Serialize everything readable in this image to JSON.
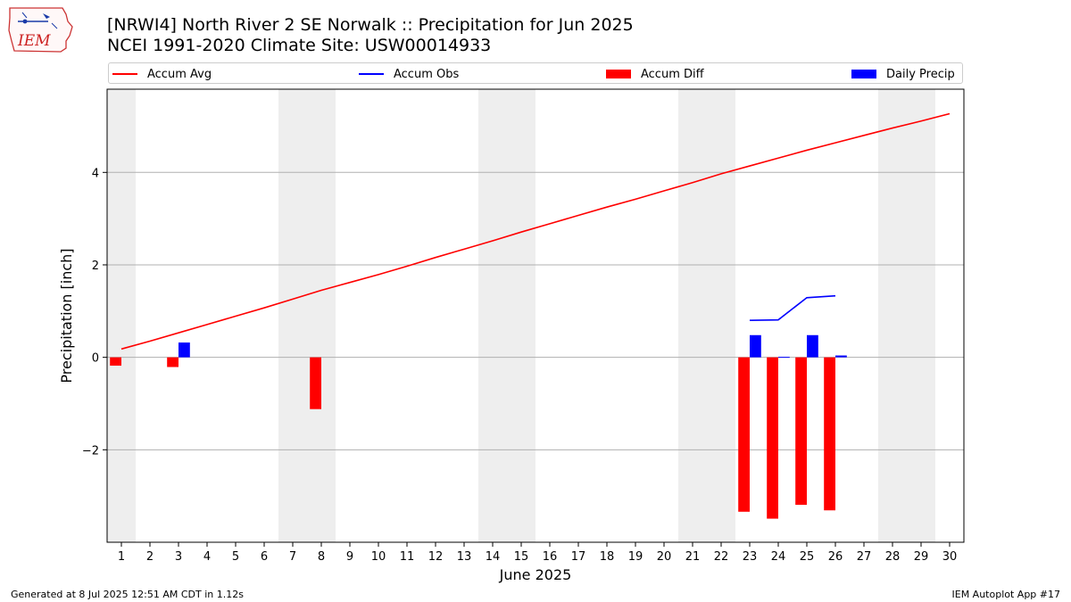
{
  "header": {
    "title_line1": "[NRWI4] North River 2 SE Norwalk :: Precipitation for Jun 2025",
    "title_line2": "NCEI 1991-2020 Climate Site: USW00014933"
  },
  "logo": {
    "text": "IEM"
  },
  "footer": {
    "left": "Generated at 8 Jul 2025 12:51 AM CDT in 1.12s",
    "right": "IEM Autoplot App #17"
  },
  "legend": [
    {
      "label": "Accum Avg",
      "kind": "line",
      "color": "#ff0000"
    },
    {
      "label": "Accum Obs",
      "kind": "line",
      "color": "#0000ff"
    },
    {
      "label": "Accum Diff",
      "kind": "patch",
      "color": "#ff0000"
    },
    {
      "label": "Daily Precip",
      "kind": "patch",
      "color": "#0000ff"
    }
  ],
  "chart_data": {
    "type": "bar",
    "xlabel": "June 2025",
    "ylabel": "Precipitation [inch]",
    "x": [
      1,
      2,
      3,
      4,
      5,
      6,
      7,
      8,
      9,
      10,
      11,
      12,
      13,
      14,
      15,
      16,
      17,
      18,
      19,
      20,
      21,
      22,
      23,
      24,
      25,
      26,
      27,
      28,
      29,
      30
    ],
    "x_tick_labels": [
      "1",
      "2",
      "3",
      "4",
      "5",
      "6",
      "7",
      "8",
      "9",
      "10",
      "11",
      "12",
      "13",
      "14",
      "15",
      "16",
      "17",
      "18",
      "19",
      "20",
      "21",
      "22",
      "23",
      "24",
      "25",
      "26",
      "27",
      "28",
      "29",
      "30"
    ],
    "xlim": [
      0.5,
      30.5
    ],
    "ylim": [
      -4.0,
      5.8
    ],
    "y_ticks": [
      -2,
      0,
      2,
      4
    ],
    "y_tick_labels": [
      "−2",
      "0",
      "2",
      "4"
    ],
    "grid": "horizontal",
    "weekend_shading": [
      [
        0.5,
        1.5
      ],
      [
        6.5,
        8.5
      ],
      [
        13.5,
        15.5
      ],
      [
        20.5,
        22.5
      ],
      [
        27.5,
        29.5
      ]
    ],
    "shade_color": "#eeeeee",
    "series": [
      {
        "name": "Accum Avg",
        "kind": "line",
        "color": "#ff0000",
        "x": [
          1,
          2,
          3,
          4,
          5,
          6,
          7,
          8,
          9,
          10,
          11,
          12,
          13,
          14,
          15,
          16,
          17,
          18,
          19,
          20,
          21,
          22,
          23,
          24,
          25,
          26,
          27,
          28,
          29,
          30
        ],
        "values": [
          0.18,
          0.35,
          0.53,
          0.71,
          0.89,
          1.07,
          1.26,
          1.45,
          1.62,
          1.79,
          1.97,
          2.16,
          2.34,
          2.52,
          2.71,
          2.89,
          3.07,
          3.25,
          3.42,
          3.6,
          3.78,
          3.97,
          4.14,
          4.31,
          4.48,
          4.64,
          4.8,
          4.96,
          5.11,
          5.27
        ]
      },
      {
        "name": "Accum Obs",
        "kind": "line",
        "color": "#0000ff",
        "x": [
          23,
          24,
          25,
          26
        ],
        "values": [
          0.8,
          0.81,
          1.29,
          1.33
        ]
      },
      {
        "name": "Accum Diff",
        "kind": "bar",
        "color": "#ff0000",
        "offset": -0.2,
        "x": [
          1,
          3,
          8,
          23,
          24,
          25,
          26
        ],
        "values": [
          -0.18,
          -0.21,
          -1.12,
          -3.34,
          -3.49,
          -3.19,
          -3.31
        ]
      },
      {
        "name": "Daily Precip",
        "kind": "bar",
        "color": "#0000ff",
        "offset": 0.2,
        "x": [
          3,
          23,
          24,
          25,
          26
        ],
        "values": [
          0.32,
          0.48,
          0.01,
          0.48,
          0.04
        ]
      }
    ]
  }
}
